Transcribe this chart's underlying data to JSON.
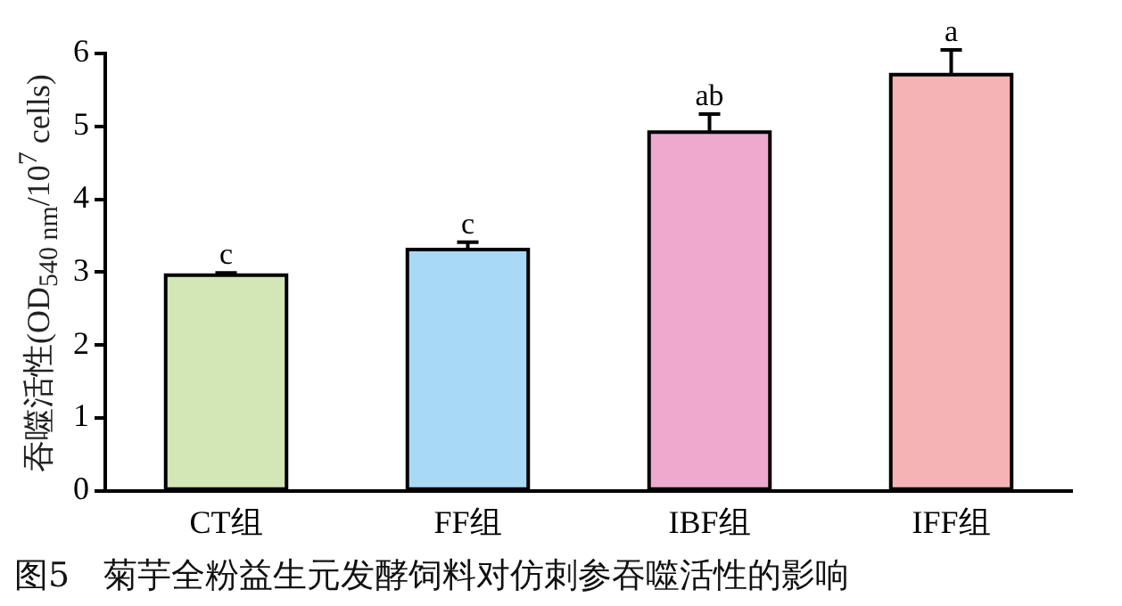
{
  "chart_data": {
    "type": "bar",
    "title": "图5　菊芋全粉益生元发酵饲料对仿刺参吞噬活性的影响",
    "ylabel": "吞噬活性(OD$_{540 nm}$/10$^{7}$ cells)",
    "categories": [
      "CT组",
      "FF组",
      "IBF组",
      "IFF组"
    ],
    "values": [
      2.96,
      3.31,
      4.92,
      5.71
    ],
    "errors": [
      0.03,
      0.1,
      0.25,
      0.34
    ],
    "colors": [
      "#d3e6b6",
      "#a8daf5",
      "#eea9cf",
      "#f5b3b5"
    ],
    "ylim": [
      0,
      6
    ],
    "yticks": [
      0,
      1,
      2,
      3,
      4,
      5,
      6
    ],
    "grid": false,
    "legend": false,
    "annotations": [
      {
        "text": "c",
        "x": "CT组",
        "y": 2.99
      },
      {
        "text": "c",
        "x": "FF组",
        "y": 3.41
      },
      {
        "text": "ab",
        "x": "IBF组",
        "y": 5.17
      },
      {
        "text": "a",
        "x": "IFF组",
        "y": 6.05
      }
    ]
  }
}
